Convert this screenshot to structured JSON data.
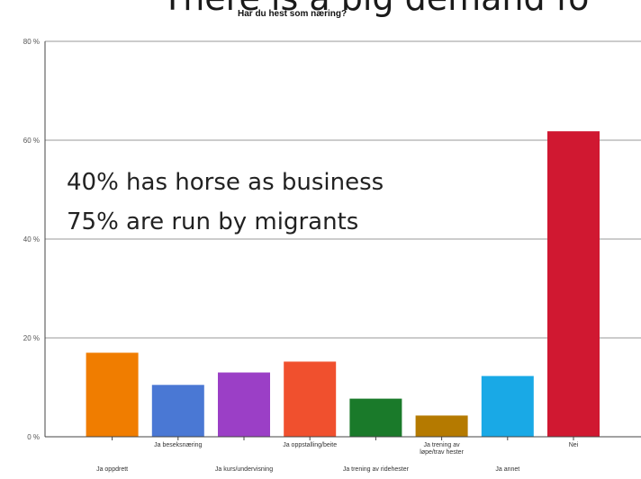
{
  "slide": {
    "title": "There is a big demand fo",
    "overlay_lines": [
      "40% has horse as business",
      "75% are run by migrants"
    ]
  },
  "chart_data": {
    "type": "bar",
    "title": "Har du hest som næring?",
    "categories": [
      "Ja oppdrett",
      "Ja beseksnæring",
      "Ja kurs/undervisning",
      "Ja oppstalling/beite",
      "Ja trening av ridehester",
      "Ja trening av løpe/trav hester",
      "Ja annet",
      "Nei"
    ],
    "values": [
      17,
      10.5,
      13,
      15.2,
      7.7,
      4.3,
      12.3,
      61.8
    ],
    "colors": [
      "#f07d00",
      "#4a78d4",
      "#9b3fc6",
      "#f0502e",
      "#1a7a2a",
      "#b57a00",
      "#19a9e6",
      "#d01831"
    ],
    "ylim": [
      0,
      80
    ],
    "yticks": [
      "0 %",
      "20 %",
      "40 %",
      "60 %",
      "80 %"
    ],
    "ytick_values": [
      0,
      20,
      40,
      60,
      80
    ],
    "grid": true,
    "xlabel": "",
    "ylabel": ""
  }
}
